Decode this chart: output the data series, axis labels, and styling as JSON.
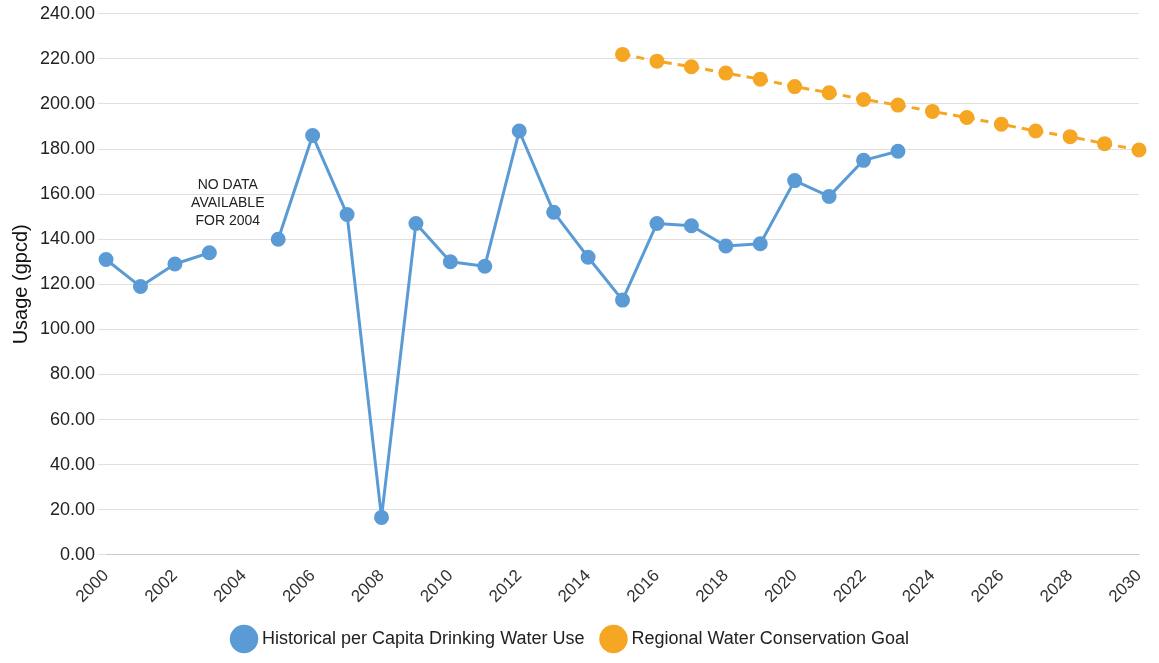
{
  "chart_data": {
    "type": "line",
    "ylabel": "Usage (gpcd)",
    "categories": [
      "2000",
      null,
      "2002",
      null,
      "2004",
      null,
      "2006",
      null,
      "2008",
      null,
      "2010",
      null,
      "2012",
      null,
      "2014",
      null,
      "2016",
      null,
      "2018",
      null,
      "2020",
      null,
      "2022",
      null,
      "2024",
      null,
      "2026",
      null,
      "2028",
      null,
      "2030"
    ],
    "series": [
      {
        "name": "Historical per Capita Drinking Water Use",
        "color": "#5b9bd5",
        "line_style": "solid",
        "values": [
          131,
          119,
          129,
          134,
          null,
          140,
          186,
          151,
          16.6,
          147,
          130,
          128,
          188,
          152,
          132,
          113,
          147,
          146,
          137,
          138,
          166,
          159,
          175,
          179,
          null,
          null,
          null,
          null,
          null,
          null,
          null
        ]
      },
      {
        "name": "Regional Water Conservation Goal",
        "color": "#f5a623",
        "line_style": "dashed",
        "values": [
          null,
          null,
          null,
          null,
          null,
          null,
          null,
          null,
          null,
          null,
          null,
          null,
          null,
          null,
          null,
          222,
          219,
          216.5,
          213.7,
          211,
          207.7,
          205,
          202,
          199.5,
          196.7,
          194,
          191,
          188,
          185.5,
          182.4,
          179.6
        ]
      }
    ],
    "ylim": [
      0,
      240
    ],
    "yticks": [
      {
        "value": 0,
        "label": "0.00"
      },
      {
        "value": 20,
        "label": "20.00"
      },
      {
        "value": 40,
        "label": "40.00"
      },
      {
        "value": 60,
        "label": "60.00"
      },
      {
        "value": 80,
        "label": "80.00"
      },
      {
        "value": 100,
        "label": "100.00"
      },
      {
        "value": 120,
        "label": "120.00"
      },
      {
        "value": 140,
        "label": "140.00"
      },
      {
        "value": 160,
        "label": "160.00"
      },
      {
        "value": 180,
        "label": "180.00"
      },
      {
        "value": 200,
        "label": "200.00"
      },
      {
        "value": 220,
        "label": "220.00"
      },
      {
        "value": 240,
        "label": "240.00"
      }
    ],
    "grid": "y",
    "legend": "bottom",
    "marker": "circle",
    "annotations": [
      "NO DATA AVAILABLE FOR 2004"
    ]
  }
}
